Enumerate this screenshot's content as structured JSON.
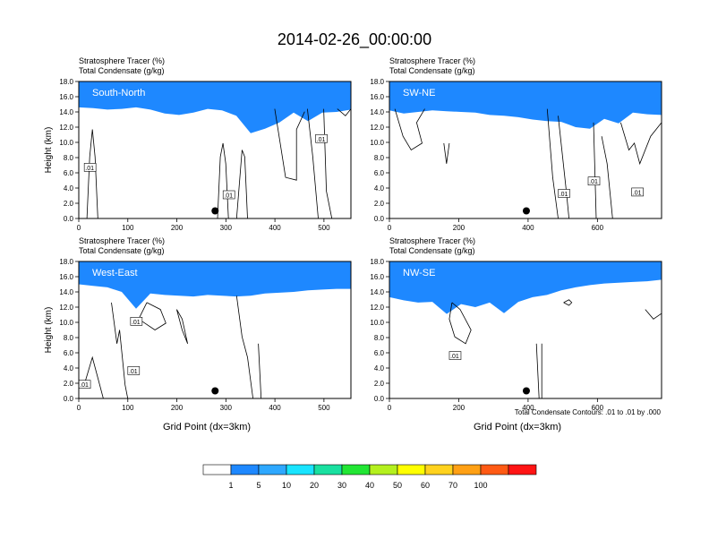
{
  "title": "2014-02-26_00:00:00",
  "colors": {
    "levels": [
      "#ffffff",
      "#1e88ff",
      "#2ea8ff",
      "#19e4ff",
      "#19e0a0",
      "#22e634",
      "#b4f01e",
      "#ffff00",
      "#ffd21e",
      "#ffa014",
      "#ff5a14",
      "#ff1414"
    ],
    "contour": "#000000"
  },
  "colorbar": {
    "labels": [
      "1",
      "5",
      "10",
      "20",
      "30",
      "40",
      "50",
      "60",
      "70",
      "100"
    ]
  },
  "footnote": "Total Condensate Contours: .01 to .01 by .000",
  "chart_data": [
    {
      "type": "heatmap",
      "panel_label": "South-North",
      "title_line1": "Stratosphere Tracer   (%)",
      "title_line2": "Total Condensate   (g/kg)",
      "ylabel": "Height (km)",
      "xlabel": "",
      "xlim": [
        0,
        555
      ],
      "ylim": [
        0,
        18
      ],
      "xticks": [
        0,
        100,
        200,
        300,
        400,
        500
      ],
      "yticks": [
        "0.0",
        "2.0",
        "4.0",
        "6.0",
        "8.0",
        "10.0",
        "12.0",
        "14.0",
        "16.0",
        "18.0"
      ],
      "tracer_base_km": [
        14.6,
        14.5,
        14.3,
        14.4,
        14.6,
        14.3,
        13.8,
        13.6,
        13.9,
        14.4,
        14.2,
        13.5,
        11.2,
        11.8,
        12.6,
        13.9,
        12.8,
        13.9,
        14.0,
        14.3
      ],
      "contour_labels": [
        ".01",
        ".01",
        ".01"
      ],
      "marker": {
        "x": 278,
        "y": 1.0
      }
    },
    {
      "type": "heatmap",
      "panel_label": "SW-NE",
      "title_line1": "Stratosphere Tracer   (%)",
      "title_line2": "Total Condensate   (g/kg)",
      "ylabel": "",
      "xlabel": "",
      "xlim": [
        0,
        785
      ],
      "ylim": [
        0,
        18
      ],
      "xticks": [
        0,
        200,
        400,
        600
      ],
      "yticks": [
        "0.0",
        "2.0",
        "4.0",
        "6.0",
        "8.0",
        "10.0",
        "12.0",
        "14.0",
        "16.0",
        "18.0"
      ],
      "tracer_base_km": [
        14.2,
        13.8,
        14.0,
        14.2,
        14.1,
        14.0,
        13.9,
        13.6,
        13.5,
        13.3,
        13.0,
        12.8,
        12.7,
        12.0,
        11.8,
        13.1,
        12.5,
        13.9,
        13.7,
        13.6
      ],
      "contour_labels": [
        ".01",
        ".01",
        ".01"
      ],
      "marker": {
        "x": 395,
        "y": 1.0
      }
    },
    {
      "type": "heatmap",
      "panel_label": "West-East",
      "title_line1": "Stratosphere Tracer   (%)",
      "title_line2": "Total Condensate   (g/kg)",
      "ylabel": "Height (km)",
      "xlabel": "Grid Point (dx=3km)",
      "xlim": [
        0,
        555
      ],
      "ylim": [
        0,
        18
      ],
      "xticks": [
        0,
        100,
        200,
        300,
        400,
        500
      ],
      "yticks": [
        "0.0",
        "2.0",
        "4.0",
        "6.0",
        "8.0",
        "10.0",
        "12.0",
        "14.0",
        "16.0",
        "18.0"
      ],
      "tracer_base_km": [
        15.0,
        14.8,
        14.6,
        14.0,
        11.8,
        13.8,
        13.6,
        13.5,
        13.4,
        13.6,
        13.5,
        13.4,
        13.5,
        13.8,
        13.9,
        14.0,
        14.2,
        14.3,
        14.4,
        14.4
      ],
      "contour_labels": [
        ".01",
        ".01",
        ".01"
      ],
      "marker": {
        "x": 278,
        "y": 1.0
      }
    },
    {
      "type": "heatmap",
      "panel_label": "NW-SE",
      "title_line1": "Stratosphere Tracer   (%)",
      "title_line2": "Total Condensate   (g/kg)",
      "ylabel": "",
      "xlabel": "Grid Point (dx=3km)",
      "xlim": [
        0,
        785
      ],
      "ylim": [
        0,
        18
      ],
      "xticks": [
        0,
        200,
        400,
        600
      ],
      "yticks": [
        "0.0",
        "2.0",
        "4.0",
        "6.0",
        "8.0",
        "10.0",
        "12.0",
        "14.0",
        "16.0",
        "18.0"
      ],
      "tracer_base_km": [
        13.3,
        12.9,
        12.6,
        12.7,
        11.1,
        12.4,
        12.0,
        12.6,
        11.2,
        12.7,
        13.3,
        13.6,
        14.2,
        14.6,
        14.9,
        15.1,
        15.2,
        15.3,
        15.4,
        15.6
      ],
      "contour_labels": [
        ".01"
      ],
      "marker": {
        "x": 395,
        "y": 1.0
      }
    }
  ]
}
